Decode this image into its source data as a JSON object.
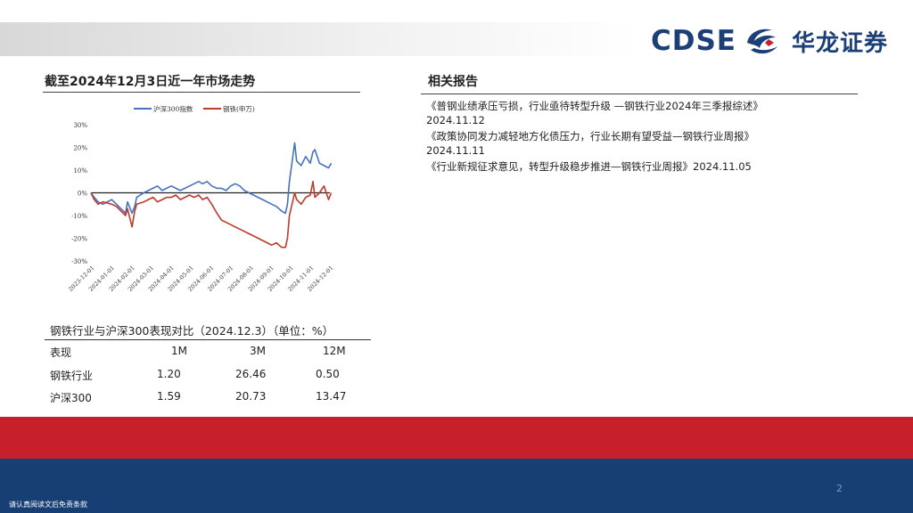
{
  "header": {
    "logo_text": "CDSE",
    "logo_cn": "华龙证券",
    "brand_color": "#1c3f78",
    "accent_red": "#c8202a"
  },
  "left_section": {
    "title": "截至2024年12月3日近一年市场走势"
  },
  "right_section": {
    "title": "相关报告",
    "reports": [
      "《普钢业绩承压亏损，行业亟待转型升级 —钢铁行业2024年三季报综述》",
      "2024.11.12",
      "《政策协同发力减轻地方化债压力，行业长期有望受益—钢铁行业周报》",
      "2024.11.11",
      "《行业新规征求意见，转型升级稳步推进—钢铁行业周报》2024.11.05"
    ]
  },
  "chart_data": {
    "type": "line",
    "ylim": [
      -30,
      30
    ],
    "yticks": [
      "30%",
      "20%",
      "10%",
      "0%",
      "-10%",
      "-20%",
      "-30%"
    ],
    "ytick_values": [
      30,
      20,
      10,
      0,
      -10,
      -20,
      -30
    ],
    "xticks": [
      "2023-12-01",
      "2024-01-01",
      "2024-02-01",
      "2024-03-01",
      "2024-04-01",
      "2024-05-01",
      "2024-06-01",
      "2024-07-01",
      "2024-08-01",
      "2024-09-01",
      "2024-10-01",
      "2024-11-01",
      "2024-12-01"
    ],
    "x": [
      "2023-12-01",
      "2023-12-06",
      "2023-12-12",
      "2023-12-19",
      "2024-01-02",
      "2024-01-09",
      "2024-01-16",
      "2024-01-23",
      "2024-01-26",
      "2024-02-02",
      "2024-02-06",
      "2024-02-09",
      "2024-02-20",
      "2024-02-27",
      "2024-03-05",
      "2024-03-12",
      "2024-03-19",
      "2024-03-26",
      "2024-04-02",
      "2024-04-09",
      "2024-04-16",
      "2024-04-23",
      "2024-04-30",
      "2024-05-07",
      "2024-05-14",
      "2024-05-20",
      "2024-05-27",
      "2024-06-03",
      "2024-06-11",
      "2024-06-18",
      "2024-06-25",
      "2024-07-02",
      "2024-07-09",
      "2024-07-16",
      "2024-07-23",
      "2024-07-30",
      "2024-08-06",
      "2024-08-13",
      "2024-08-20",
      "2024-08-27",
      "2024-09-03",
      "2024-09-10",
      "2024-09-18",
      "2024-09-24",
      "2024-09-27",
      "2024-09-30",
      "2024-10-08",
      "2024-10-11",
      "2024-10-18",
      "2024-10-25",
      "2024-11-01",
      "2024-11-05",
      "2024-11-08",
      "2024-11-15",
      "2024-11-22",
      "2024-11-29",
      "2024-12-03"
    ],
    "series": [
      {
        "name": "沪深300指数",
        "color": "#4472c4",
        "values": [
          0,
          -2,
          -4,
          -5,
          -3,
          -5,
          -7,
          -9,
          -4,
          -9,
          -6,
          -2,
          0,
          1,
          2,
          3,
          1,
          2,
          3,
          2,
          1,
          2,
          3,
          4,
          5,
          4,
          5,
          3,
          2,
          2,
          1,
          3,
          4,
          3,
          1,
          0,
          -1,
          -2,
          -3,
          -4,
          -5,
          -6,
          -8,
          -9,
          -5,
          5,
          22,
          14,
          12,
          16,
          13,
          18,
          19,
          13,
          12,
          11,
          13
        ],
        "values_note": ""
      },
      {
        "name": "钢铁(申万)",
        "color": "#c0392b",
        "values": [
          0,
          -3,
          -5,
          -4,
          -5,
          -6,
          -8,
          -10,
          -7,
          -15,
          -8,
          -5,
          -4,
          -3,
          -2,
          -4,
          -3,
          -2,
          -2,
          -1,
          -3,
          -2,
          -1,
          -2,
          -1,
          -3,
          -2,
          -5,
          -9,
          -12,
          -13,
          -14,
          -15,
          -16,
          -17,
          -18,
          -19,
          -20,
          -21,
          -22,
          -23,
          -22,
          -24,
          -24,
          -20,
          -10,
          0,
          -3,
          -5,
          -2,
          -1,
          5,
          -2,
          0,
          3,
          -3,
          0
        ]
      }
    ],
    "legend": "top-center",
    "xlabel": "",
    "ylabel": ""
  },
  "performance": {
    "title": "钢铁行业与沪深300表现对比（2024.12.3）（单位：%）",
    "headers": [
      "表现",
      "1M",
      "3M",
      "12M"
    ],
    "rows": [
      [
        "钢铁行业",
        "1.20",
        "26.46",
        "0.50"
      ],
      [
        "沪深300",
        "1.59",
        "20.73",
        "13.47"
      ]
    ]
  },
  "footer": {
    "page_number": "2",
    "disclaimer": "请认真阅读文后免责条款"
  }
}
